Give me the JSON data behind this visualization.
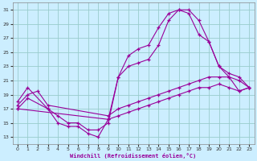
{
  "xlabel": "Windchill (Refroidissement éolien,°C)",
  "bg_color": "#cceeff",
  "grid_color": "#99cccc",
  "line_color": "#990099",
  "xlim": [
    -0.5,
    23.5
  ],
  "ylim": [
    12,
    32
  ],
  "xticks": [
    0,
    1,
    2,
    3,
    4,
    5,
    6,
    7,
    8,
    9,
    10,
    11,
    12,
    13,
    14,
    15,
    16,
    17,
    18,
    19,
    20,
    21,
    22,
    23
  ],
  "yticks": [
    13,
    15,
    17,
    19,
    21,
    23,
    25,
    27,
    29,
    31
  ],
  "curve1_x": [
    0,
    1,
    3,
    4,
    5,
    6,
    7,
    8,
    9,
    10,
    11,
    12,
    13,
    14,
    15,
    16,
    17,
    18,
    19,
    20,
    21,
    22,
    23
  ],
  "curve1_y": [
    18,
    20,
    17,
    15,
    14.5,
    14.5,
    13.5,
    13,
    15.5,
    21.5,
    24.5,
    25.5,
    26,
    28.5,
    30.5,
    31,
    31,
    29.5,
    26.5,
    23,
    22,
    21.5,
    20
  ],
  "curve2_x": [
    0,
    1,
    3,
    4,
    5,
    6,
    7,
    8,
    9,
    10,
    11,
    12,
    13,
    14,
    15,
    16,
    17,
    18,
    19,
    20,
    21,
    22,
    23
  ],
  "curve2_y": [
    17,
    18.5,
    17,
    16,
    15,
    15,
    14,
    14,
    15,
    21.5,
    23,
    23.5,
    24,
    26,
    29.5,
    31,
    30.5,
    27.5,
    26.5,
    23,
    21.5,
    21,
    20
  ],
  "curve3_x": [
    0,
    1,
    2,
    3,
    9,
    10,
    11,
    12,
    13,
    14,
    15,
    16,
    17,
    18,
    19,
    20,
    21,
    22,
    23
  ],
  "curve3_y": [
    17.5,
    19,
    19.5,
    17.5,
    16,
    17,
    17.5,
    18,
    18.5,
    19,
    19.5,
    20,
    20.5,
    21,
    21.5,
    21.5,
    21.5,
    19.5,
    20
  ],
  "curve4_x": [
    0,
    9,
    10,
    11,
    12,
    13,
    14,
    15,
    16,
    17,
    18,
    19,
    20,
    21,
    22,
    23
  ],
  "curve4_y": [
    17,
    15.5,
    16,
    16.5,
    17,
    17.5,
    18,
    18.5,
    19,
    19.5,
    20,
    20,
    20.5,
    20,
    19.5,
    20
  ]
}
